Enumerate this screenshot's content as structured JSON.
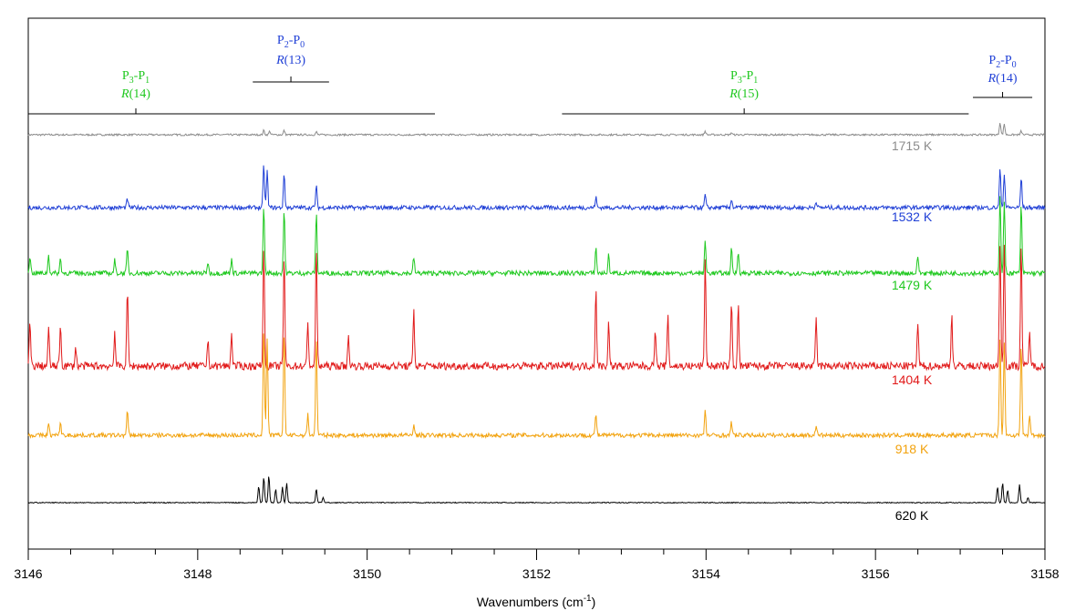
{
  "chart_data": {
    "type": "line",
    "title": "",
    "xlabel": "Wavenumbers (cm",
    "xlabel_sup": "-1",
    "xlabel_end": ")",
    "ylabel": "",
    "xlim": [
      3146,
      3158
    ],
    "xticks": [
      3146,
      3148,
      3150,
      3152,
      3154,
      3156,
      3158
    ],
    "grid": false,
    "legend": "none",
    "series": [
      {
        "label": "1715 K",
        "color": "#8c8c8c",
        "baseline": 0.0,
        "noise": 0.025,
        "peaks": [
          [
            3148.78,
            0.12
          ],
          [
            3148.85,
            0.1
          ],
          [
            3149.02,
            0.12
          ],
          [
            3149.4,
            0.08
          ],
          [
            3153.99,
            0.1
          ],
          [
            3154.3,
            0.06
          ],
          [
            3157.47,
            0.35
          ],
          [
            3157.52,
            0.3
          ],
          [
            3157.72,
            0.1
          ]
        ]
      },
      {
        "label": "1532 K",
        "color": "#1f3fd6",
        "baseline": 0.0,
        "noise": 0.025,
        "peaks": [
          [
            3147.17,
            0.1
          ],
          [
            3148.78,
            0.5
          ],
          [
            3148.82,
            0.42
          ],
          [
            3149.02,
            0.4
          ],
          [
            3149.4,
            0.25
          ],
          [
            3152.7,
            0.12
          ],
          [
            3153.99,
            0.15
          ],
          [
            3154.3,
            0.1
          ],
          [
            3155.3,
            0.08
          ],
          [
            3157.47,
            0.45
          ],
          [
            3157.52,
            0.4
          ],
          [
            3157.72,
            0.35
          ]
        ]
      },
      {
        "label": "1479 K",
        "color": "#1ec81e",
        "baseline": 0.0,
        "noise": 0.03,
        "peaks": [
          [
            3146.02,
            0.22
          ],
          [
            3146.24,
            0.22
          ],
          [
            3146.38,
            0.18
          ],
          [
            3147.02,
            0.16
          ],
          [
            3147.17,
            0.3
          ],
          [
            3148.12,
            0.14
          ],
          [
            3148.4,
            0.18
          ],
          [
            3148.78,
            0.85
          ],
          [
            3149.02,
            0.8
          ],
          [
            3149.4,
            0.75
          ],
          [
            3150.55,
            0.2
          ],
          [
            3152.7,
            0.32
          ],
          [
            3152.85,
            0.22
          ],
          [
            3153.99,
            0.4
          ],
          [
            3154.3,
            0.3
          ],
          [
            3154.38,
            0.28
          ],
          [
            3156.5,
            0.22
          ],
          [
            3157.47,
            0.95
          ],
          [
            3157.52,
            0.9
          ],
          [
            3157.72,
            0.85
          ]
        ]
      },
      {
        "label": "1404 K",
        "color": "#e11a1a",
        "baseline": 0.0,
        "noise": 0.045,
        "peaks": [
          [
            3146.02,
            0.5
          ],
          [
            3146.24,
            0.42
          ],
          [
            3146.38,
            0.48
          ],
          [
            3146.56,
            0.22
          ],
          [
            3147.02,
            0.4
          ],
          [
            3147.17,
            0.9
          ],
          [
            3148.12,
            0.3
          ],
          [
            3148.4,
            0.38
          ],
          [
            3148.78,
            1.4
          ],
          [
            3149.02,
            1.3
          ],
          [
            3149.3,
            0.5
          ],
          [
            3149.4,
            1.4
          ],
          [
            3149.78,
            0.35
          ],
          [
            3150.55,
            0.65
          ],
          [
            3152.7,
            0.9
          ],
          [
            3152.85,
            0.5
          ],
          [
            3153.4,
            0.45
          ],
          [
            3153.55,
            0.6
          ],
          [
            3153.99,
            1.25
          ],
          [
            3154.3,
            0.75
          ],
          [
            3154.38,
            0.7
          ],
          [
            3155.3,
            0.55
          ],
          [
            3156.5,
            0.5
          ],
          [
            3156.9,
            0.6
          ],
          [
            3157.47,
            1.45
          ],
          [
            3157.52,
            1.4
          ],
          [
            3157.72,
            1.4
          ],
          [
            3157.82,
            0.4
          ]
        ]
      },
      {
        "label": "918 K",
        "color": "#f2a20d",
        "baseline": 0.0,
        "noise": 0.02,
        "peaks": [
          [
            3146.24,
            0.1
          ],
          [
            3146.38,
            0.12
          ],
          [
            3147.17,
            0.22
          ],
          [
            3148.78,
            1.0
          ],
          [
            3148.82,
            0.9
          ],
          [
            3149.02,
            0.95
          ],
          [
            3149.3,
            0.2
          ],
          [
            3149.4,
            0.9
          ],
          [
            3150.55,
            0.1
          ],
          [
            3152.7,
            0.2
          ],
          [
            3153.99,
            0.22
          ],
          [
            3154.3,
            0.12
          ],
          [
            3155.3,
            0.1
          ],
          [
            3157.47,
            0.9
          ],
          [
            3157.52,
            0.85
          ],
          [
            3157.72,
            0.85
          ],
          [
            3157.82,
            0.18
          ]
        ]
      },
      {
        "label": "620 K",
        "color": "#000000",
        "baseline": 0.0,
        "noise": 0.005,
        "peaks": [
          [
            3148.72,
            0.18
          ],
          [
            3148.78,
            0.28
          ],
          [
            3148.84,
            0.3
          ],
          [
            3148.92,
            0.15
          ],
          [
            3149.0,
            0.17
          ],
          [
            3149.05,
            0.22
          ],
          [
            3149.4,
            0.15
          ],
          [
            3149.48,
            0.06
          ],
          [
            3157.44,
            0.17
          ],
          [
            3157.5,
            0.22
          ],
          [
            3157.56,
            0.14
          ],
          [
            3157.7,
            0.2
          ],
          [
            3157.8,
            0.06
          ]
        ]
      }
    ],
    "annotations": [
      {
        "band": "P",
        "band_sub1": "3",
        "band_mid": "-P",
        "band_sub2": "1",
        "branch": "R",
        "branch_num": "(14)",
        "color": "#1ec81e",
        "span": [
          3146.0,
          3150.8
        ],
        "center": 3147.27
      },
      {
        "band": "P",
        "band_sub1": "2",
        "band_mid": "-P",
        "band_sub2": "0",
        "branch": "R",
        "branch_num": "(13)",
        "color": "#1f3fd6",
        "span": [
          3148.65,
          3149.55
        ],
        "center": 3149.1
      },
      {
        "band": "P",
        "band_sub1": "3",
        "band_mid": "-P",
        "band_sub2": "1",
        "branch": "R",
        "branch_num": "(15)",
        "color": "#1ec81e",
        "span": [
          3152.3,
          3157.1
        ],
        "center": 3154.45
      },
      {
        "band": "P",
        "band_sub1": "2",
        "band_mid": "-P",
        "band_sub2": "0",
        "branch": "R",
        "branch_num": "(14)",
        "color": "#1f3fd6",
        "span": [
          3157.15,
          3157.85
        ],
        "center": 3157.5
      }
    ]
  }
}
